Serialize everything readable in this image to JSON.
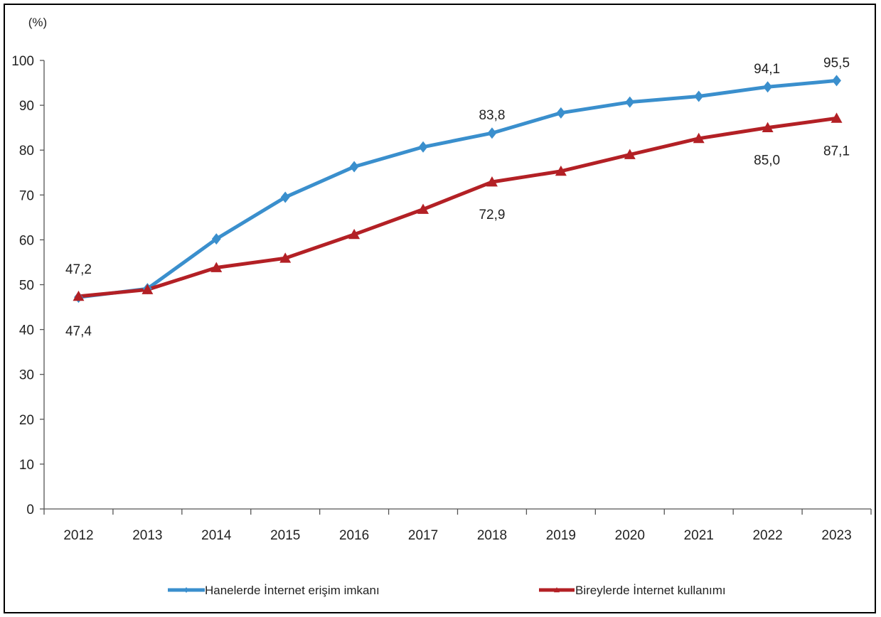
{
  "chart_data": {
    "type": "line",
    "unit_label": "(%)",
    "categories": [
      "2012",
      "2013",
      "2014",
      "2015",
      "2016",
      "2017",
      "2018",
      "2019",
      "2020",
      "2021",
      "2022",
      "2023"
    ],
    "ylim": [
      0,
      100
    ],
    "yticks": [
      0,
      10,
      20,
      30,
      40,
      50,
      60,
      70,
      80,
      90,
      100
    ],
    "grid": false,
    "legend_position": "bottom",
    "series": [
      {
        "name": "Hanelerde İnternet erişim imkanı",
        "color": "#3a8fcd",
        "marker": "diamond",
        "values": [
          47.2,
          49.1,
          60.2,
          69.5,
          76.3,
          80.7,
          83.8,
          88.3,
          90.7,
          92.0,
          94.1,
          95.5
        ],
        "labels": {
          "0": "47,2",
          "6": "83,8",
          "10": "94,1",
          "11": "95,5"
        }
      },
      {
        "name": "Bireylerde İnternet kullanımı",
        "color": "#b32025",
        "marker": "triangle",
        "values": [
          47.4,
          48.9,
          53.8,
          55.9,
          61.2,
          66.8,
          72.9,
          75.3,
          79.0,
          82.6,
          85.0,
          87.1
        ],
        "labels": {
          "0": "47,4",
          "6": "72,9",
          "10": "85,0",
          "11": "87,1"
        }
      }
    ]
  }
}
